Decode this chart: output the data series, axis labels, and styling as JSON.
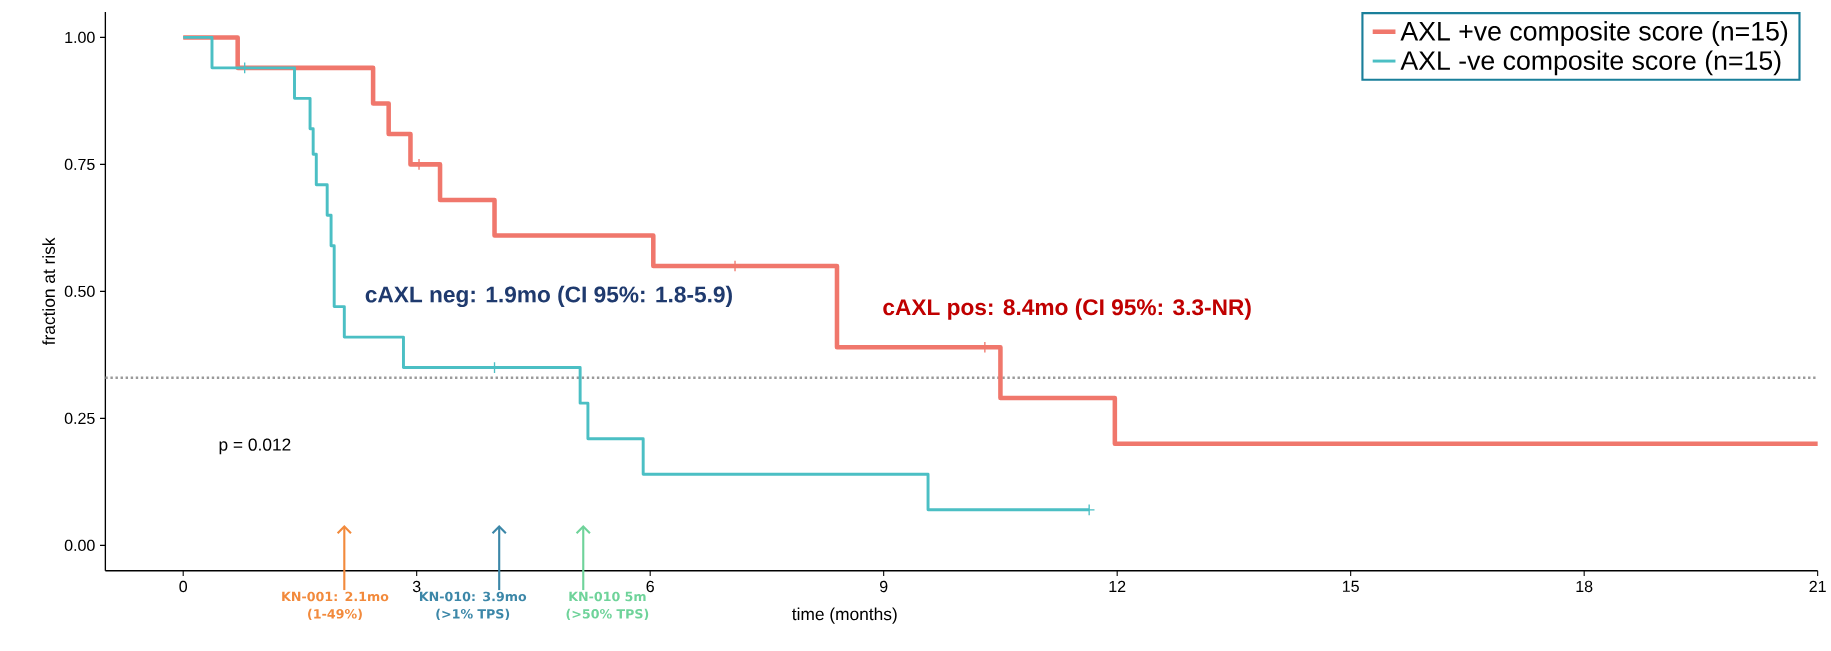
{
  "chart_data": {
    "type": "step",
    "xlabel": "time (months)",
    "ylabel": "fraction at risk",
    "xlim": [
      -1,
      21
    ],
    "ylim": [
      -0.05,
      1.05
    ],
    "xticks": [
      0,
      3,
      6,
      9,
      12,
      15,
      18,
      21
    ],
    "yticks": [
      {
        "value": 0,
        "label": "0.00"
      },
      {
        "value": 0.25,
        "label": "0.25"
      },
      {
        "value": 0.5,
        "label": "0.50"
      },
      {
        "value": 0.75,
        "label": "0.75"
      },
      {
        "value": 1,
        "label": "1.00"
      }
    ],
    "legend": "top right",
    "grid": false,
    "series": [
      {
        "name": "AXL +ve composite score (n=15)",
        "color": "#f0776c",
        "x": [
          0,
          0.7,
          2.44,
          2.64,
          2.92,
          3.3,
          4.0,
          6.04,
          8.4,
          10.5,
          11.97,
          21
        ],
        "values": [
          1,
          0.94,
          0.87,
          0.81,
          0.75,
          0.68,
          0.61,
          0.55,
          0.39,
          0.29,
          0.2,
          0.2
        ]
      },
      {
        "name": "AXL -ve composite score (n=15)",
        "color": "#4bbfc4",
        "x": [
          0,
          0.37,
          1.43,
          1.63,
          1.67,
          1.71,
          1.85,
          1.9,
          1.94,
          2.07,
          2.83,
          5.1,
          5.2,
          5.91,
          9.57,
          11.64
        ],
        "values": [
          1,
          0.94,
          0.88,
          0.82,
          0.77,
          0.71,
          0.65,
          0.59,
          0.47,
          0.41,
          0.35,
          0.28,
          0.21,
          0.14,
          0.07,
          0.07
        ]
      },
      {
        "color": "#f0776c",
        "type": "scatter",
        "marker": "cross",
        "x": [
          3.03,
          7.09,
          10.3
        ],
        "values": [
          0.75,
          0.55,
          0.39
        ]
      },
      {
        "color": "#4bbfc4",
        "type": "scatter",
        "marker": "cross",
        "x": [
          0.79,
          4.0,
          11.64
        ],
        "values": [
          0.94,
          0.35,
          0.07
        ]
      }
    ],
    "ref_lines": [
      {
        "axis": "y",
        "value": 0.33,
        "color": "#9a9a9a",
        "line_style": "dotted"
      }
    ],
    "annotations": [
      "cAXL neg: 1.9mo (CI 95%: 1.8-5.9)",
      "cAXL pos: 8.4mo (CI 95%: 3.3-NR)",
      "p = 0.012",
      "KN-001: 2.1mo (1-49%)",
      "KN-010: 3.9mo (>1% TPS)",
      "KN-010 5m (>50% TPS)"
    ]
  }
}
